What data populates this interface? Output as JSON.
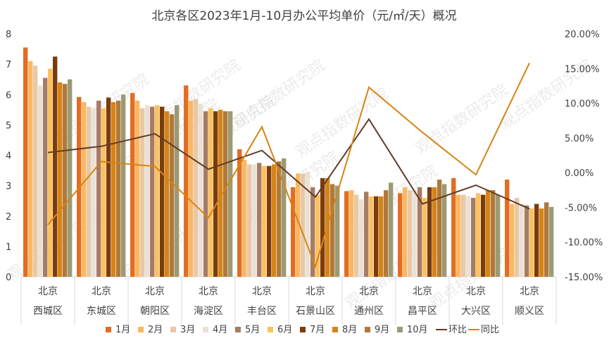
{
  "chart_data": {
    "type": "bar",
    "title": "北京各区2023年1月-10月办公平均单价（元/㎡/天）概况",
    "group_label": "北京",
    "categories": [
      "西城区",
      "东城区",
      "朝阳区",
      "海淀区",
      "丰台区",
      "石景山区",
      "通州区",
      "昌平区",
      "大兴区",
      "顺义区"
    ],
    "series": [
      {
        "name": "1月",
        "color": "#E46C21",
        "values": [
          7.55,
          5.92,
          6.05,
          6.3,
          4.2,
          2.95,
          2.82,
          2.75,
          3.25,
          3.2
        ]
      },
      {
        "name": "2月",
        "color": "#F9B861",
        "values": [
          7.1,
          5.75,
          5.8,
          5.8,
          3.85,
          3.4,
          2.85,
          2.95,
          2.7,
          2.4
        ]
      },
      {
        "name": "3月",
        "color": "#E8C8A8",
        "values": [
          6.95,
          5.6,
          5.55,
          5.85,
          3.7,
          3.4,
          2.7,
          2.85,
          2.7,
          2.6
        ]
      },
      {
        "name": "4月",
        "color": "#E8E2D6",
        "values": [
          6.3,
          5.55,
          5.65,
          5.7,
          3.7,
          3.45,
          2.55,
          2.85,
          2.65,
          2.4
        ]
      },
      {
        "name": "5月",
        "color": "#A87B63",
        "values": [
          6.55,
          5.8,
          5.6,
          5.45,
          3.75,
          2.95,
          2.8,
          2.95,
          2.6,
          2.35
        ]
      },
      {
        "name": "6月",
        "color": "#FCC15F",
        "values": [
          6.85,
          5.55,
          5.65,
          5.55,
          3.65,
          2.7,
          2.65,
          2.6,
          2.75,
          2.25
        ]
      },
      {
        "name": "7月",
        "color": "#7B3C0C",
        "values": [
          7.25,
          5.9,
          5.6,
          5.45,
          3.65,
          3.25,
          2.65,
          2.95,
          2.7,
          2.4
        ]
      },
      {
        "name": "8月",
        "color": "#D68415",
        "values": [
          6.4,
          5.75,
          5.45,
          5.5,
          3.7,
          3.25,
          2.65,
          2.95,
          2.85,
          2.25
        ]
      },
      {
        "name": "9月",
        "color": "#B0793C",
        "values": [
          6.35,
          5.8,
          5.35,
          5.45,
          3.8,
          3.05,
          2.85,
          3.2,
          2.85,
          2.45
        ]
      },
      {
        "name": "10月",
        "color": "#9C9A73",
        "values": [
          6.5,
          6.0,
          5.65,
          5.45,
          3.9,
          3.0,
          3.1,
          3.05,
          2.7,
          2.3
        ]
      }
    ],
    "lines": [
      {
        "name": "环比",
        "color": "#613C26",
        "axis": "right",
        "values": [
          2.9,
          3.8,
          5.6,
          0.5,
          3.2,
          -3.5,
          7.7,
          -4.5,
          -1.8,
          -5.2
        ]
      },
      {
        "name": "同比",
        "color": "#D68415",
        "axis": "right",
        "values": [
          -7.5,
          1.6,
          0.9,
          -6.5,
          6.6,
          -13.5,
          12.3,
          5.8,
          -0.3,
          15.8
        ]
      }
    ],
    "left_axis": {
      "min": 0,
      "max": 8,
      "step": 1,
      "ticks": [
        "0",
        "1",
        "2",
        "3",
        "4",
        "5",
        "6",
        "7",
        "8"
      ]
    },
    "right_axis": {
      "min": -15,
      "max": 20,
      "step": 5,
      "ticks": [
        "-15.00%",
        "-10.00%",
        "-5.00%",
        "0.00%",
        "5.00%",
        "10.00%",
        "15.00%",
        "20.00%"
      ]
    },
    "grid": false,
    "legend_position": "bottom",
    "watermark": "观点指数研究院"
  }
}
